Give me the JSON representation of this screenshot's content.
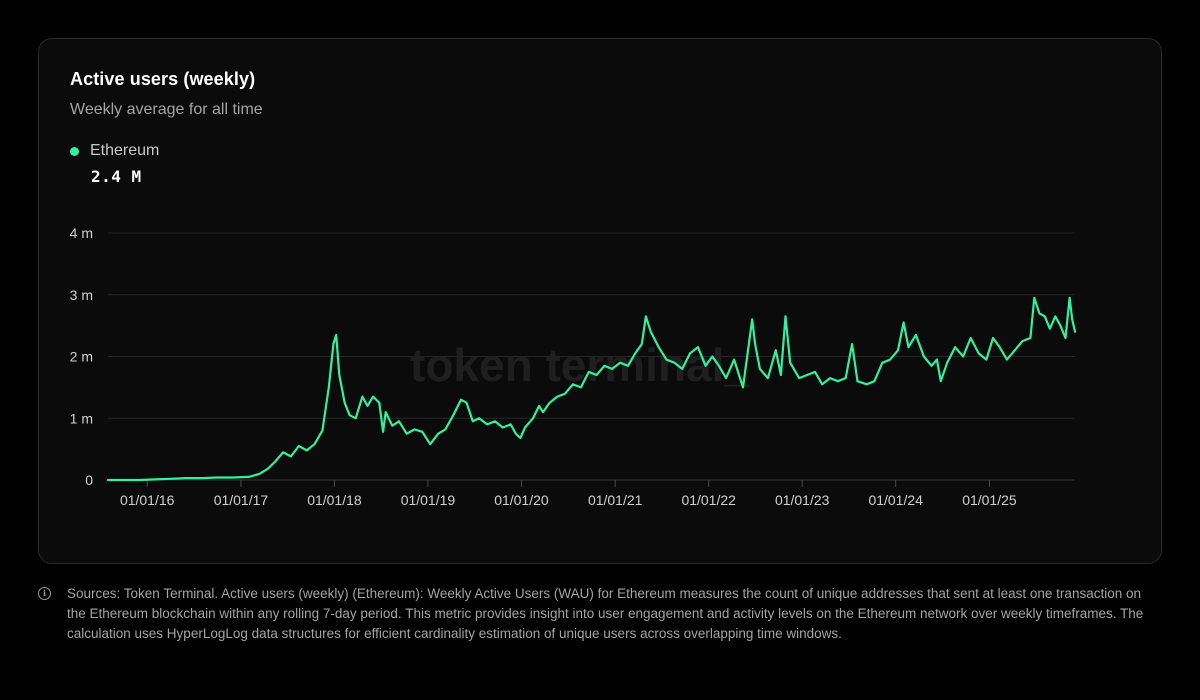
{
  "card": {
    "title": "Active users (weekly)",
    "subtitle": "Weekly average for all time"
  },
  "legend": {
    "series_name": "Ethereum",
    "current_value": "2.4 M",
    "color": "#2ef2a2"
  },
  "watermark": "token terminal_",
  "footnote": {
    "icon": "info-icon",
    "text": "Sources: Token Terminal. Active users (weekly) (Ethereum): Weekly Active Users (WAU) for Ethereum measures the count of unique addresses that sent at least one transaction on the Ethereum blockchain within any rolling 7-day period. This metric provides insight into user engagement and activity levels on the Ethereum network over weekly timeframes. The calculation uses HyperLogLog data structures for efficient cardinality estimation of unique users across overlapping time windows."
  },
  "chart_data": {
    "type": "line",
    "title": "Active users (weekly)",
    "subtitle": "Weekly average for all time",
    "xlabel": "",
    "ylabel": "",
    "ylim": [
      0,
      4
    ],
    "y_unit": "million",
    "y_ticks": [
      {
        "value": 0,
        "label": "0"
      },
      {
        "value": 1,
        "label": "1 m"
      },
      {
        "value": 2,
        "label": "2 m"
      },
      {
        "value": 3,
        "label": "3 m"
      },
      {
        "value": 4,
        "label": "4 m"
      }
    ],
    "xlim": [
      "2015-08-01",
      "2025-12-01"
    ],
    "x_ticks": [
      {
        "value": "2016-01-01",
        "label": "01/01/16"
      },
      {
        "value": "2017-01-01",
        "label": "01/01/17"
      },
      {
        "value": "2018-01-01",
        "label": "01/01/18"
      },
      {
        "value": "2019-01-01",
        "label": "01/01/19"
      },
      {
        "value": "2020-01-01",
        "label": "01/01/20"
      },
      {
        "value": "2021-01-01",
        "label": "01/01/21"
      },
      {
        "value": "2022-01-01",
        "label": "01/01/22"
      },
      {
        "value": "2023-01-01",
        "label": "01/01/23"
      },
      {
        "value": "2024-01-01",
        "label": "01/01/24"
      },
      {
        "value": "2025-01-01",
        "label": "01/01/25"
      }
    ],
    "grid": true,
    "legend_position": "top-left",
    "series": [
      {
        "name": "Ethereum",
        "color": "#2ef2a2",
        "points": [
          [
            "2015-08-01",
            0.0
          ],
          [
            "2015-10-01",
            0.0
          ],
          [
            "2015-12-01",
            0.0
          ],
          [
            "2016-02-01",
            0.01
          ],
          [
            "2016-04-01",
            0.02
          ],
          [
            "2016-06-01",
            0.03
          ],
          [
            "2016-08-01",
            0.03
          ],
          [
            "2016-10-01",
            0.04
          ],
          [
            "2016-12-01",
            0.04
          ],
          [
            "2017-02-01",
            0.05
          ],
          [
            "2017-03-15",
            0.1
          ],
          [
            "2017-04-15",
            0.18
          ],
          [
            "2017-05-15",
            0.3
          ],
          [
            "2017-06-15",
            0.45
          ],
          [
            "2017-07-15",
            0.38
          ],
          [
            "2017-08-15",
            0.55
          ],
          [
            "2017-09-15",
            0.48
          ],
          [
            "2017-10-15",
            0.58
          ],
          [
            "2017-11-15",
            0.8
          ],
          [
            "2017-12-10",
            1.5
          ],
          [
            "2017-12-28",
            2.2
          ],
          [
            "2018-01-08",
            2.35
          ],
          [
            "2018-01-20",
            1.7
          ],
          [
            "2018-02-10",
            1.25
          ],
          [
            "2018-03-01",
            1.05
          ],
          [
            "2018-03-25",
            1.0
          ],
          [
            "2018-04-20",
            1.35
          ],
          [
            "2018-05-10",
            1.2
          ],
          [
            "2018-06-01",
            1.35
          ],
          [
            "2018-06-25",
            1.25
          ],
          [
            "2018-07-10",
            0.78
          ],
          [
            "2018-07-20",
            1.1
          ],
          [
            "2018-08-15",
            0.88
          ],
          [
            "2018-09-10",
            0.95
          ],
          [
            "2018-10-10",
            0.75
          ],
          [
            "2018-11-10",
            0.82
          ],
          [
            "2018-12-10",
            0.78
          ],
          [
            "2019-01-10",
            0.58
          ],
          [
            "2019-02-10",
            0.75
          ],
          [
            "2019-03-10",
            0.82
          ],
          [
            "2019-04-10",
            1.05
          ],
          [
            "2019-05-10",
            1.3
          ],
          [
            "2019-06-01",
            1.25
          ],
          [
            "2019-06-25",
            0.95
          ],
          [
            "2019-07-20",
            1.0
          ],
          [
            "2019-08-20",
            0.9
          ],
          [
            "2019-09-20",
            0.95
          ],
          [
            "2019-10-20",
            0.85
          ],
          [
            "2019-11-20",
            0.9
          ],
          [
            "2019-12-10",
            0.75
          ],
          [
            "2019-12-28",
            0.68
          ],
          [
            "2020-01-15",
            0.85
          ],
          [
            "2020-02-15",
            1.0
          ],
          [
            "2020-03-10",
            1.2
          ],
          [
            "2020-03-25",
            1.1
          ],
          [
            "2020-04-20",
            1.25
          ],
          [
            "2020-05-20",
            1.35
          ],
          [
            "2020-06-20",
            1.4
          ],
          [
            "2020-07-20",
            1.55
          ],
          [
            "2020-08-20",
            1.5
          ],
          [
            "2020-09-20",
            1.75
          ],
          [
            "2020-10-20",
            1.7
          ],
          [
            "2020-11-20",
            1.85
          ],
          [
            "2020-12-20",
            1.8
          ],
          [
            "2021-01-20",
            1.9
          ],
          [
            "2021-02-20",
            1.85
          ],
          [
            "2021-03-20",
            2.05
          ],
          [
            "2021-04-15",
            2.2
          ],
          [
            "2021-05-01",
            2.65
          ],
          [
            "2021-05-20",
            2.4
          ],
          [
            "2021-06-20",
            2.15
          ],
          [
            "2021-07-20",
            1.95
          ],
          [
            "2021-08-20",
            1.9
          ],
          [
            "2021-09-20",
            1.8
          ],
          [
            "2021-10-20",
            2.05
          ],
          [
            "2021-11-20",
            2.15
          ],
          [
            "2021-12-20",
            1.85
          ],
          [
            "2022-01-15",
            2.0
          ],
          [
            "2022-02-10",
            1.85
          ],
          [
            "2022-03-10",
            1.65
          ],
          [
            "2022-04-10",
            1.95
          ],
          [
            "2022-05-15",
            1.5
          ],
          [
            "2022-06-20",
            2.6
          ],
          [
            "2022-07-01",
            2.2
          ],
          [
            "2022-07-20",
            1.8
          ],
          [
            "2022-08-20",
            1.65
          ],
          [
            "2022-09-20",
            2.1
          ],
          [
            "2022-10-10",
            1.7
          ],
          [
            "2022-10-28",
            2.65
          ],
          [
            "2022-11-15",
            1.9
          ],
          [
            "2022-12-20",
            1.65
          ],
          [
            "2023-01-20",
            1.7
          ],
          [
            "2023-02-20",
            1.75
          ],
          [
            "2023-03-20",
            1.55
          ],
          [
            "2023-04-20",
            1.65
          ],
          [
            "2023-05-20",
            1.6
          ],
          [
            "2023-06-20",
            1.65
          ],
          [
            "2023-07-15",
            2.2
          ],
          [
            "2023-08-05",
            1.6
          ],
          [
            "2023-09-10",
            1.55
          ],
          [
            "2023-10-10",
            1.6
          ],
          [
            "2023-11-10",
            1.9
          ],
          [
            "2023-12-10",
            1.95
          ],
          [
            "2024-01-10",
            2.1
          ],
          [
            "2024-02-01",
            2.55
          ],
          [
            "2024-02-20",
            2.15
          ],
          [
            "2024-03-20",
            2.35
          ],
          [
            "2024-04-20",
            2.0
          ],
          [
            "2024-05-20",
            1.85
          ],
          [
            "2024-06-10",
            1.95
          ],
          [
            "2024-06-25",
            1.6
          ],
          [
            "2024-07-20",
            1.9
          ],
          [
            "2024-08-20",
            2.15
          ],
          [
            "2024-09-20",
            2.0
          ],
          [
            "2024-10-20",
            2.3
          ],
          [
            "2024-11-20",
            2.05
          ],
          [
            "2024-12-20",
            1.95
          ],
          [
            "2025-01-15",
            2.3
          ],
          [
            "2025-02-10",
            2.15
          ],
          [
            "2025-03-10",
            1.95
          ],
          [
            "2025-04-10",
            2.1
          ],
          [
            "2025-05-10",
            2.25
          ],
          [
            "2025-06-10",
            2.3
          ],
          [
            "2025-06-25",
            2.95
          ],
          [
            "2025-07-15",
            2.7
          ],
          [
            "2025-08-05",
            2.65
          ],
          [
            "2025-08-25",
            2.45
          ],
          [
            "2025-09-15",
            2.65
          ],
          [
            "2025-10-05",
            2.5
          ],
          [
            "2025-10-25",
            2.3
          ],
          [
            "2025-11-10",
            2.95
          ],
          [
            "2025-11-20",
            2.6
          ],
          [
            "2025-12-01",
            2.4
          ]
        ]
      }
    ]
  }
}
